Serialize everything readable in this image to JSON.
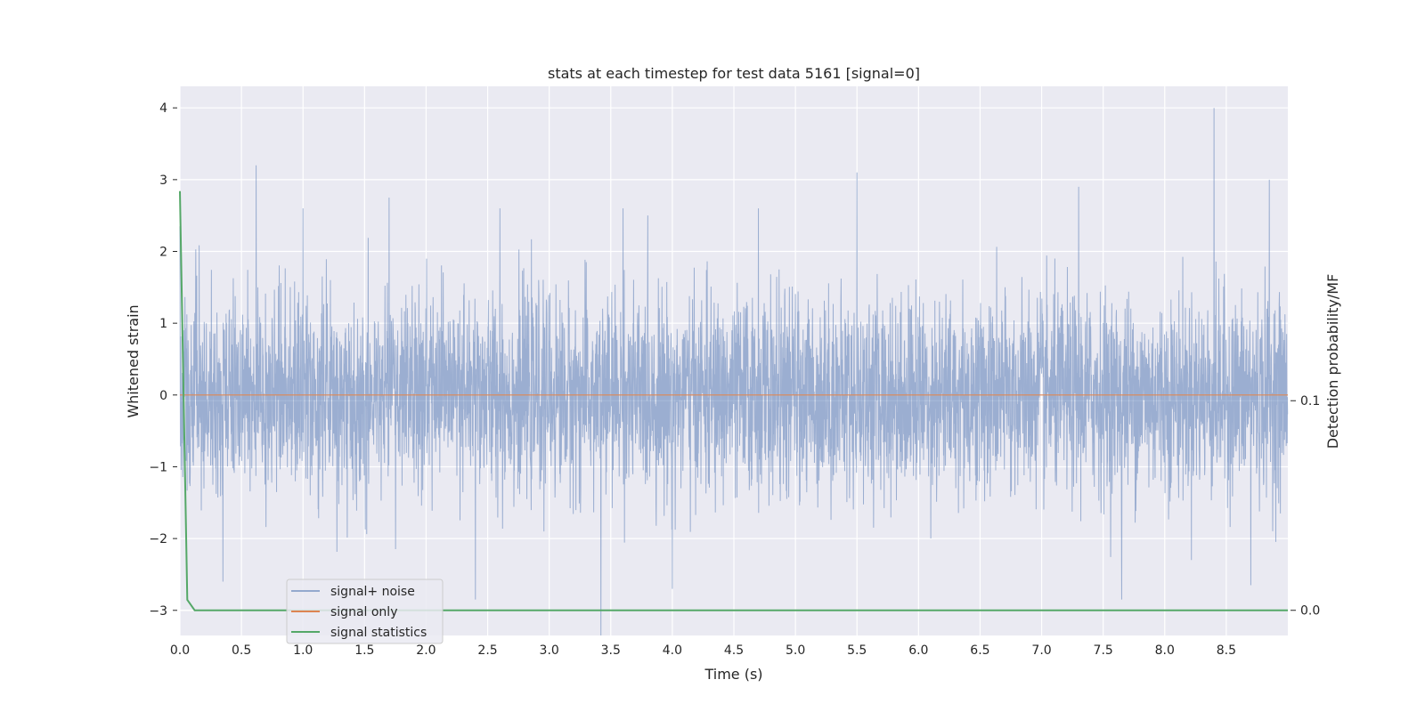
{
  "chart_data": {
    "type": "line",
    "title": "stats at each timestep for test data 5161 [signal=0]",
    "xlabel": "Time (s)",
    "ylabel": "Whitened strain",
    "ylabel_right": "Detection probability/MF",
    "xlim": [
      0,
      9.0
    ],
    "ylim": [
      -3.35,
      4.3
    ],
    "ylim_right": [
      -0.012,
      0.25
    ],
    "x_ticks": [
      0.0,
      0.5,
      1.0,
      1.5,
      2.0,
      2.5,
      3.0,
      3.5,
      4.0,
      4.5,
      5.0,
      5.5,
      6.0,
      6.5,
      7.0,
      7.5,
      8.0,
      8.5
    ],
    "x_tick_labels": [
      "0.0",
      "0.5",
      "1.0",
      "1.5",
      "2.0",
      "2.5",
      "3.0",
      "3.5",
      "4.0",
      "4.5",
      "5.0",
      "5.5",
      "6.0",
      "6.5",
      "7.0",
      "7.5",
      "8.0",
      "8.5"
    ],
    "y_ticks": [
      -3,
      -2,
      -1,
      0,
      1,
      2,
      3,
      4
    ],
    "y_tick_labels": [
      "−3",
      "−2",
      "−1",
      "0",
      "1",
      "2",
      "3",
      "4"
    ],
    "y_right_ticks": [
      0.0,
      0.1
    ],
    "y_right_tick_labels": [
      "0.0",
      "0.1"
    ],
    "grid": true,
    "legend_position": "lower-left",
    "series": [
      {
        "name": "signal+ noise",
        "axis": "left",
        "color": "#4c72b0",
        "kind": "dense noise, approx. zero-mean, std ≈ 0.7",
        "sample_rate_hz": 2048,
        "duration_s": 9.0,
        "peaks": [
          {
            "x": 0.0,
            "y": 2.35
          },
          {
            "x": 0.62,
            "y": 3.2
          },
          {
            "x": 1.0,
            "y": 2.6
          },
          {
            "x": 1.7,
            "y": 2.75
          },
          {
            "x": 2.6,
            "y": 2.6
          },
          {
            "x": 3.6,
            "y": 2.6
          },
          {
            "x": 4.7,
            "y": 2.6
          },
          {
            "x": 5.5,
            "y": 3.1
          },
          {
            "x": 7.3,
            "y": 2.9
          },
          {
            "x": 8.4,
            "y": 4.0
          },
          {
            "x": 8.85,
            "y": 3.0
          },
          {
            "x": 3.42,
            "y": -3.35
          },
          {
            "x": 2.4,
            "y": -2.85
          },
          {
            "x": 7.65,
            "y": -2.85
          },
          {
            "x": 4.0,
            "y": -2.7
          },
          {
            "x": 8.7,
            "y": -2.65
          },
          {
            "x": 0.35,
            "y": -2.6
          }
        ]
      },
      {
        "name": "signal only",
        "axis": "left",
        "color": "#dd8452",
        "x": [
          0.0,
          9.0
        ],
        "y": [
          0.0,
          0.0
        ]
      },
      {
        "name": "signal statistics",
        "axis": "right",
        "color": "#55a868",
        "x": [
          0.0,
          0.06,
          0.12,
          9.0
        ],
        "y": [
          0.2,
          0.005,
          0.0,
          0.0
        ]
      }
    ]
  }
}
